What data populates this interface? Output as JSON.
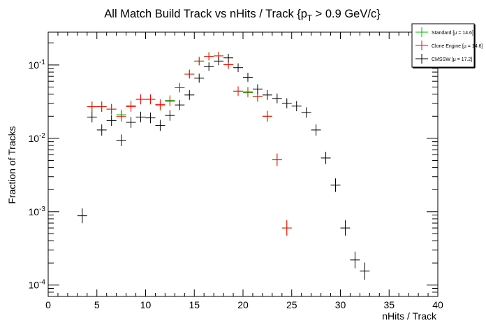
{
  "chart_data": {
    "type": "scatter",
    "title": "All Match Build Track vs nHits / Track {p",
    "title_sub": "T",
    "title_tail": " > 0.9 GeV/c}",
    "xlabel": "nHits / Track",
    "ylabel": "Fraction of Tracks",
    "xlim": [
      0,
      40
    ],
    "ylim": [
      7e-05,
      0.28
    ],
    "yscale": "log",
    "grid": false,
    "legend_position": "top-right",
    "x_ticks": [
      "0",
      "5",
      "10",
      "15",
      "20",
      "25",
      "30",
      "35",
      "40"
    ],
    "y_ticks": [
      {
        "base": "10",
        "exp": "-4"
      },
      {
        "base": "10",
        "exp": "-3"
      },
      {
        "base": "10",
        "exp": "-2"
      },
      {
        "base": "10",
        "exp": "-1"
      }
    ],
    "series": [
      {
        "name": "Standard",
        "mean_label": "[μ = 14.6]",
        "color": "#00bb00",
        "points": [
          {
            "x": 4,
            "y": 0.027
          },
          {
            "x": 5,
            "y": 0.027
          },
          {
            "x": 6,
            "y": 0.025
          },
          {
            "x": 7,
            "y": 0.021
          },
          {
            "x": 8,
            "y": 0.028
          },
          {
            "x": 9,
            "y": 0.034
          },
          {
            "x": 10,
            "y": 0.034
          },
          {
            "x": 11,
            "y": 0.028
          },
          {
            "x": 12,
            "y": 0.033
          },
          {
            "x": 13,
            "y": 0.049
          },
          {
            "x": 14,
            "y": 0.075
          },
          {
            "x": 15,
            "y": 0.113
          },
          {
            "x": 16,
            "y": 0.131
          },
          {
            "x": 17,
            "y": 0.133
          },
          {
            "x": 18,
            "y": 0.101
          },
          {
            "x": 19,
            "y": 0.044
          },
          {
            "x": 20,
            "y": 0.042
          },
          {
            "x": 21,
            "y": 0.037
          },
          {
            "x": 22,
            "y": 0.02
          },
          {
            "x": 23,
            "y": 0.0051
          },
          {
            "x": 24,
            "y": 0.0006
          }
        ]
      },
      {
        "name": "Clone Engine",
        "mean_label": "[μ = 14.6]",
        "color": "#ff0000",
        "points": [
          {
            "x": 4,
            "y": 0.027
          },
          {
            "x": 5,
            "y": 0.027
          },
          {
            "x": 6,
            "y": 0.025
          },
          {
            "x": 7,
            "y": 0.02
          },
          {
            "x": 8,
            "y": 0.027
          },
          {
            "x": 9,
            "y": 0.034
          },
          {
            "x": 10,
            "y": 0.034
          },
          {
            "x": 11,
            "y": 0.029
          },
          {
            "x": 12,
            "y": 0.032
          },
          {
            "x": 13,
            "y": 0.049
          },
          {
            "x": 14,
            "y": 0.075
          },
          {
            "x": 15,
            "y": 0.113
          },
          {
            "x": 16,
            "y": 0.131
          },
          {
            "x": 17,
            "y": 0.133
          },
          {
            "x": 18,
            "y": 0.101
          },
          {
            "x": 19,
            "y": 0.044
          },
          {
            "x": 20,
            "y": 0.043
          },
          {
            "x": 21,
            "y": 0.037
          },
          {
            "x": 22,
            "y": 0.02
          },
          {
            "x": 23,
            "y": 0.0051
          },
          {
            "x": 24,
            "y": 0.0006
          }
        ]
      },
      {
        "name": "CMSSW",
        "mean_label": "[μ = 17.2]",
        "color": "#000000",
        "points": [
          {
            "x": 3,
            "y": 0.00088
          },
          {
            "x": 4,
            "y": 0.0195
          },
          {
            "x": 5,
            "y": 0.013
          },
          {
            "x": 6,
            "y": 0.0175
          },
          {
            "x": 7,
            "y": 0.0094
          },
          {
            "x": 8,
            "y": 0.0165
          },
          {
            "x": 9,
            "y": 0.0195
          },
          {
            "x": 10,
            "y": 0.019
          },
          {
            "x": 11,
            "y": 0.015
          },
          {
            "x": 12,
            "y": 0.0205
          },
          {
            "x": 13,
            "y": 0.0285
          },
          {
            "x": 14,
            "y": 0.039
          },
          {
            "x": 15,
            "y": 0.066
          },
          {
            "x": 16,
            "y": 0.095
          },
          {
            "x": 17,
            "y": 0.113
          },
          {
            "x": 18,
            "y": 0.125
          },
          {
            "x": 19,
            "y": 0.092
          },
          {
            "x": 20,
            "y": 0.068
          },
          {
            "x": 21,
            "y": 0.047
          },
          {
            "x": 22,
            "y": 0.039
          },
          {
            "x": 23,
            "y": 0.035
          },
          {
            "x": 24,
            "y": 0.03
          },
          {
            "x": 25,
            "y": 0.0275
          },
          {
            "x": 26,
            "y": 0.0225
          },
          {
            "x": 27,
            "y": 0.013
          },
          {
            "x": 28,
            "y": 0.0054
          },
          {
            "x": 29,
            "y": 0.0023
          },
          {
            "x": 30,
            "y": 0.0006
          },
          {
            "x": 31,
            "y": 0.00022
          },
          {
            "x": 32,
            "y": 0.000155
          }
        ]
      }
    ]
  }
}
